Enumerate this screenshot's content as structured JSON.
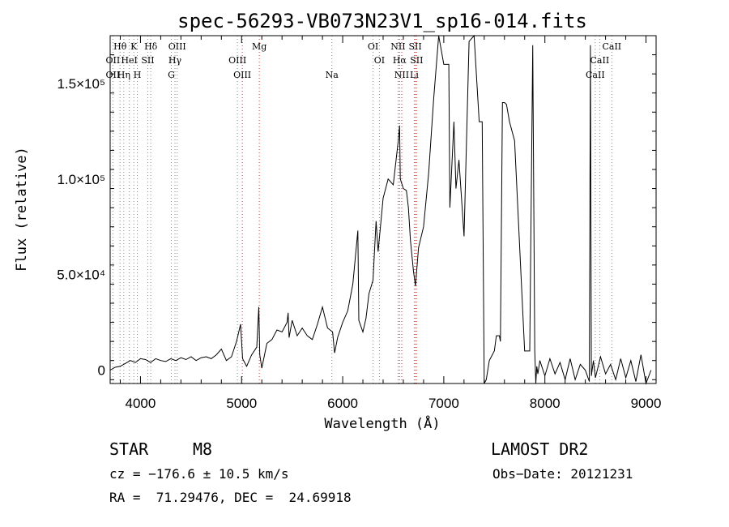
{
  "chart_data": {
    "type": "line",
    "title": "spec-56293-VB073N23V1_sp16-014.fits",
    "xlabel": "Wavelength (Å)",
    "ylabel": "Flux (relative)",
    "xlim": [
      3700,
      9100
    ],
    "ylim": [
      -7000,
      175000
    ],
    "xticks": [
      {
        "value": 4000,
        "label": "4000"
      },
      {
        "value": 5000,
        "label": "5000"
      },
      {
        "value": 6000,
        "label": "6000"
      },
      {
        "value": 7000,
        "label": "7000"
      },
      {
        "value": 8000,
        "label": "8000"
      },
      {
        "value": 9000,
        "label": "9000"
      }
    ],
    "yticks": [
      {
        "value": 0,
        "label": "0"
      },
      {
        "value": 50000,
        "label": "5.0×10⁴"
      },
      {
        "value": 100000,
        "label": "1.0×10⁵"
      },
      {
        "value": 150000,
        "label": "1.5×10⁵"
      }
    ],
    "grid": false,
    "series": [
      {
        "x": [
          3700,
          3750,
          3800,
          3850,
          3900,
          3950,
          4000,
          4050,
          4100,
          4150,
          4200,
          4250,
          4300,
          4350,
          4400,
          4450,
          4500,
          4550,
          4600,
          4650,
          4700,
          4750,
          4800,
          4850,
          4900,
          4950,
          4990,
          5010,
          5050,
          5100,
          5150,
          5170,
          5180,
          5200,
          5250,
          5300,
          5350,
          5400,
          5450,
          5460,
          5470,
          5500,
          5550,
          5600,
          5650,
          5700,
          5750,
          5800,
          5850,
          5900,
          5920,
          5950,
          6000,
          6050,
          6100,
          6150,
          6160,
          6200,
          6230,
          6260,
          6300,
          6330,
          6350,
          6400,
          6450,
          6500,
          6550,
          6563,
          6570,
          6600,
          6630,
          6650,
          6670,
          6700,
          6720,
          6750,
          6800,
          6850,
          6900,
          6950,
          7000,
          7050,
          7060,
          7100,
          7120,
          7150,
          7200,
          7250,
          7300,
          7350,
          7380,
          7400,
          7420,
          7450,
          7500,
          7520,
          7550,
          7560,
          7580,
          7600,
          7620,
          7650,
          7700,
          7800,
          7850,
          7880,
          7900,
          7910,
          7920,
          7930,
          7950,
          8000,
          8050,
          8100,
          8150,
          8200,
          8250,
          8300,
          8350,
          8400,
          8440,
          8450,
          8460,
          8480,
          8500,
          8550,
          8600,
          8650,
          8700,
          8750,
          8800,
          8850,
          8900,
          8950,
          9000,
          9050
        ],
        "y": [
          0,
          1500,
          2000,
          3500,
          5000,
          4000,
          6000,
          5500,
          4000,
          6000,
          5000,
          4500,
          6000,
          5000,
          6500,
          5500,
          7000,
          5000,
          6500,
          7000,
          6000,
          8000,
          11000,
          5000,
          7000,
          15000,
          24000,
          6000,
          2000,
          8000,
          12000,
          33000,
          8000,
          1000,
          14000,
          16000,
          21000,
          20000,
          25000,
          30000,
          17000,
          26000,
          18000,
          22000,
          18000,
          16000,
          24000,
          33000,
          22000,
          20000,
          9000,
          17000,
          25000,
          31000,
          45000,
          73000,
          26000,
          20000,
          27000,
          40000,
          47000,
          78000,
          62000,
          90000,
          100000,
          97000,
          120000,
          128000,
          100000,
          95000,
          94000,
          85000,
          68000,
          52000,
          44000,
          64000,
          75000,
          103000,
          142000,
          177000,
          160000,
          160000,
          85000,
          130000,
          95000,
          110000,
          70000,
          172000,
          175000,
          130000,
          130000,
          -13000,
          -5000,
          5000,
          10000,
          18000,
          18000,
          15000,
          140000,
          140000,
          139000,
          130000,
          120000,
          10000,
          10000,
          170000,
          10000,
          -8000,
          2000,
          -2000,
          5000,
          -3000,
          6000,
          -2000,
          4000,
          -5000,
          6000,
          -5000,
          3000,
          0,
          -6000,
          170000,
          -3000,
          5000,
          -4000,
          7000,
          -2000,
          3000,
          -5000,
          6000,
          -4000,
          5000,
          -6000,
          8000,
          -10000,
          0
        ]
      }
    ],
    "line_labels": [
      {
        "name": "Hθ",
        "wl": 3798,
        "row": 0
      },
      {
        "name": "K",
        "wl": 3934,
        "row": 0
      },
      {
        "name": "Hδ",
        "wl": 4102,
        "row": 0
      },
      {
        "name": "OIII",
        "wl": 4363,
        "row": 0
      },
      {
        "name": "Mg",
        "wl": 5175,
        "row": 0
      },
      {
        "name": "OI",
        "wl": 6300,
        "row": 0
      },
      {
        "name": "NII",
        "wl": 6548,
        "row": 0
      },
      {
        "name": "SII",
        "wl": 6717,
        "row": 0
      },
      {
        "name": "CaII",
        "wl": 8662,
        "row": 0
      },
      {
        "name": "OII",
        "wl": 3727,
        "row": 1
      },
      {
        "name": "HeI",
        "wl": 3889,
        "row": 1
      },
      {
        "name": "SII",
        "wl": 4072,
        "row": 1
      },
      {
        "name": "Hγ",
        "wl": 4341,
        "row": 1
      },
      {
        "name": "OIII",
        "wl": 4959,
        "row": 1
      },
      {
        "name": "OI",
        "wl": 6363,
        "row": 1
      },
      {
        "name": "Hα",
        "wl": 6563,
        "row": 1
      },
      {
        "name": "SII",
        "wl": 6731,
        "row": 1
      },
      {
        "name": "CaII",
        "wl": 8542,
        "row": 1
      },
      {
        "name": "OII",
        "wl": 3727,
        "row": 2
      },
      {
        "name": "Hη",
        "wl": 3835,
        "row": 2
      },
      {
        "name": "H",
        "wl": 3969,
        "row": 2
      },
      {
        "name": "G",
        "wl": 4305,
        "row": 2
      },
      {
        "name": "OIII",
        "wl": 5007,
        "row": 2
      },
      {
        "name": "Na",
        "wl": 5893,
        "row": 2
      },
      {
        "name": "NII",
        "wl": 6584,
        "row": 2
      },
      {
        "name": "Li",
        "wl": 6708,
        "row": 2
      },
      {
        "name": "CaII",
        "wl": 8498,
        "row": 2
      }
    ],
    "marker_lines": [
      {
        "wl": 3727,
        "color": "#888888"
      },
      {
        "wl": 3798,
        "color": "#888888"
      },
      {
        "wl": 3835,
        "color": "#888888"
      },
      {
        "wl": 3889,
        "color": "#888888"
      },
      {
        "wl": 3934,
        "color": "#888888"
      },
      {
        "wl": 3969,
        "color": "#888888"
      },
      {
        "wl": 4072,
        "color": "#888888"
      },
      {
        "wl": 4102,
        "color": "#888888"
      },
      {
        "wl": 4305,
        "color": "#888888"
      },
      {
        "wl": 4341,
        "color": "#888888"
      },
      {
        "wl": 4363,
        "color": "#888888"
      },
      {
        "wl": 4959,
        "color": "#888888"
      },
      {
        "wl": 5007,
        "color": "#cc3333"
      },
      {
        "wl": 5175,
        "color": "#cc3333"
      },
      {
        "wl": 5893,
        "color": "#888888"
      },
      {
        "wl": 6300,
        "color": "#888888"
      },
      {
        "wl": 6363,
        "color": "#888888"
      },
      {
        "wl": 6548,
        "color": "#cc3333"
      },
      {
        "wl": 6563,
        "color": "#cc3333"
      },
      {
        "wl": 6584,
        "color": "#cc3333"
      },
      {
        "wl": 6708,
        "color": "#888888"
      },
      {
        "wl": 6717,
        "color": "#cc3333"
      },
      {
        "wl": 6731,
        "color": "#cc3333"
      },
      {
        "wl": 8498,
        "color": "#888888"
      },
      {
        "wl": 8542,
        "color": "#888888"
      },
      {
        "wl": 8662,
        "color": "#888888"
      }
    ]
  },
  "info": {
    "class": "STAR",
    "subclass": "M8",
    "survey": "LAMOST DR2",
    "cz": "cz = −176.6 ± 10.5 km/s",
    "obs_date": "Obs−Date: 20121231",
    "radec": "RA =  71.29476, DEC =  24.69918"
  }
}
